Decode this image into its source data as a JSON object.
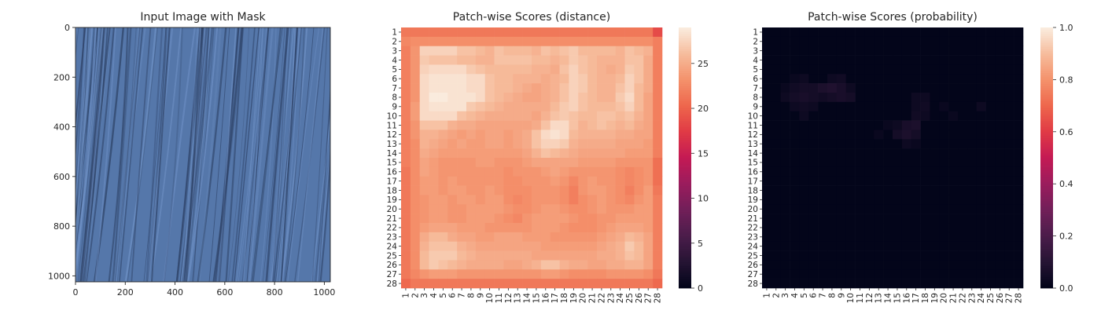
{
  "chart_data": [
    {
      "type": "image",
      "title": "Input Image with Mask",
      "xticks": [
        "0",
        "200",
        "400",
        "600",
        "800",
        "1000"
      ],
      "yticks": [
        "0",
        "200",
        "400",
        "600",
        "800",
        "1000"
      ],
      "xlim": [
        0,
        1024
      ],
      "ylim": [
        0,
        1024
      ],
      "image": {
        "description_color": "#5577aa",
        "dark_streak_color": "#2c4064",
        "light_streak_color": "#6f91c6"
      }
    },
    {
      "type": "heatmap",
      "title": "Patch-wise Scores (distance)",
      "colormap": "rocket",
      "vmin": 0,
      "vmax": 29,
      "colorbar_ticks": [
        "0",
        "5",
        "10",
        "15",
        "20",
        "25"
      ],
      "xticks": [
        "1",
        "2",
        "3",
        "4",
        "5",
        "6",
        "7",
        "8",
        "9",
        "10",
        "11",
        "12",
        "13",
        "14",
        "15",
        "16",
        "17",
        "18",
        "19",
        "20",
        "21",
        "22",
        "23",
        "24",
        "25",
        "26",
        "27",
        "28"
      ],
      "yticks": [
        "1",
        "2",
        "3",
        "4",
        "5",
        "6",
        "7",
        "8",
        "9",
        "10",
        "11",
        "12",
        "13",
        "14",
        "15",
        "16",
        "17",
        "18",
        "19",
        "20",
        "21",
        "22",
        "23",
        "24",
        "25",
        "26",
        "27",
        "28"
      ],
      "rows": [
        [
          21.5,
          21.5,
          21.5,
          21.5,
          21.5,
          21.5,
          21.5,
          21.5,
          21.5,
          21.5,
          21.5,
          21.5,
          21.5,
          21.5,
          21.5,
          21.5,
          21.5,
          21.5,
          21.5,
          21.5,
          21.5,
          21.5,
          21.5,
          21.5,
          21.5,
          21.5,
          21.5,
          18.5
        ],
        [
          22.5,
          23.0,
          23.0,
          23.0,
          23.0,
          23.0,
          23.0,
          23.0,
          23.0,
          23.0,
          23.0,
          23.0,
          23.0,
          23.0,
          23.0,
          23.0,
          23.0,
          23.0,
          23.0,
          23.0,
          23.0,
          23.0,
          23.0,
          23.0,
          23.0,
          23.0,
          23.0,
          22.0
        ],
        [
          22.0,
          23.5,
          27.5,
          27.5,
          27.5,
          27.5,
          26.5,
          26.5,
          26.0,
          25.5,
          26.5,
          26.0,
          26.0,
          26.0,
          25.5,
          26.5,
          26.0,
          26.5,
          27.0,
          26.0,
          26.0,
          26.0,
          26.0,
          25.5,
          26.5,
          26.0,
          25.5,
          22.0
        ],
        [
          22.0,
          23.5,
          27.0,
          26.5,
          26.5,
          26.5,
          26.0,
          26.0,
          25.5,
          25.5,
          26.5,
          26.5,
          26.5,
          26.5,
          26.0,
          26.0,
          25.5,
          26.0,
          27.0,
          26.5,
          26.0,
          25.5,
          25.5,
          25.5,
          26.5,
          26.5,
          25.0,
          22.0
        ],
        [
          22.0,
          23.5,
          27.5,
          28.0,
          28.0,
          28.0,
          28.0,
          27.0,
          26.5,
          26.0,
          26.0,
          26.0,
          26.0,
          26.0,
          25.5,
          25.5,
          25.0,
          26.5,
          27.5,
          26.5,
          26.0,
          25.5,
          25.0,
          25.5,
          27.0,
          26.5,
          25.0,
          22.0
        ],
        [
          22.0,
          23.5,
          28.0,
          28.5,
          28.5,
          28.5,
          28.5,
          28.0,
          28.0,
          26.5,
          26.0,
          26.0,
          25.5,
          25.5,
          25.5,
          25.0,
          25.5,
          26.0,
          27.5,
          27.0,
          26.0,
          25.5,
          25.5,
          26.0,
          27.5,
          26.5,
          25.0,
          22.0
        ],
        [
          22.0,
          23.5,
          28.0,
          28.5,
          28.5,
          28.5,
          28.5,
          28.0,
          28.0,
          26.5,
          26.0,
          26.0,
          25.5,
          25.0,
          24.5,
          25.0,
          25.5,
          26.5,
          27.5,
          27.0,
          26.0,
          25.5,
          25.5,
          26.5,
          27.5,
          26.0,
          25.0,
          22.0
        ],
        [
          22.0,
          23.5,
          28.0,
          29.0,
          29.0,
          28.5,
          28.5,
          28.5,
          28.0,
          26.5,
          26.0,
          25.5,
          25.0,
          24.5,
          24.5,
          25.0,
          25.5,
          26.5,
          27.5,
          26.5,
          26.0,
          25.5,
          25.5,
          27.0,
          28.0,
          26.0,
          24.5,
          22.0
        ],
        [
          22.0,
          24.0,
          28.0,
          28.5,
          28.5,
          28.5,
          28.5,
          27.0,
          26.5,
          26.0,
          25.5,
          25.0,
          25.0,
          25.0,
          25.0,
          25.0,
          26.0,
          27.0,
          27.5,
          26.5,
          26.0,
          26.0,
          26.0,
          26.5,
          27.5,
          26.0,
          24.5,
          22.0
        ],
        [
          22.0,
          24.0,
          28.0,
          28.0,
          28.0,
          28.0,
          26.5,
          26.0,
          25.5,
          25.0,
          25.0,
          25.0,
          25.0,
          25.0,
          24.5,
          25.5,
          26.5,
          27.0,
          26.5,
          26.0,
          26.0,
          26.5,
          26.5,
          26.0,
          26.5,
          25.5,
          24.5,
          22.0
        ],
        [
          22.0,
          23.5,
          26.5,
          26.5,
          26.5,
          25.5,
          25.0,
          25.0,
          24.5,
          24.5,
          24.5,
          24.5,
          24.5,
          24.5,
          25.0,
          26.5,
          28.0,
          28.0,
          26.5,
          25.5,
          26.0,
          26.5,
          26.0,
          25.5,
          26.0,
          25.0,
          24.5,
          22.0
        ],
        [
          22.0,
          23.5,
          25.5,
          25.5,
          25.0,
          24.5,
          24.0,
          24.5,
          24.0,
          24.5,
          24.5,
          24.0,
          24.5,
          25.0,
          26.5,
          28.0,
          28.5,
          28.0,
          26.0,
          25.5,
          25.5,
          25.5,
          25.5,
          25.0,
          25.0,
          24.5,
          24.5,
          22.0
        ],
        [
          22.0,
          23.0,
          25.5,
          25.0,
          24.5,
          24.0,
          24.5,
          24.0,
          24.0,
          24.5,
          24.5,
          24.0,
          24.5,
          25.0,
          26.5,
          27.5,
          27.5,
          27.0,
          25.5,
          25.0,
          25.0,
          25.0,
          25.0,
          24.5,
          24.5,
          24.5,
          24.0,
          22.0
        ],
        [
          22.0,
          23.0,
          25.0,
          24.5,
          24.0,
          24.0,
          24.0,
          24.0,
          24.0,
          24.0,
          24.0,
          24.0,
          24.0,
          24.5,
          25.5,
          26.5,
          26.0,
          25.5,
          25.0,
          24.5,
          24.5,
          24.5,
          24.5,
          24.5,
          24.0,
          24.0,
          24.0,
          22.0
        ],
        [
          22.0,
          23.0,
          24.5,
          24.0,
          23.5,
          23.5,
          23.5,
          23.5,
          24.0,
          24.0,
          23.5,
          23.5,
          23.5,
          24.0,
          24.5,
          24.5,
          24.5,
          24.5,
          24.5,
          24.0,
          24.0,
          24.0,
          24.0,
          23.5,
          23.5,
          23.5,
          23.5,
          21.0
        ],
        [
          21.5,
          23.0,
          24.5,
          24.0,
          23.5,
          23.5,
          23.5,
          23.5,
          23.5,
          23.5,
          23.5,
          23.0,
          23.5,
          23.5,
          23.5,
          24.0,
          24.5,
          24.0,
          23.5,
          23.5,
          23.5,
          23.5,
          23.5,
          23.0,
          22.5,
          23.0,
          23.5,
          21.0
        ],
        [
          21.5,
          23.0,
          24.0,
          24.0,
          23.5,
          24.0,
          23.5,
          23.5,
          23.5,
          23.5,
          23.5,
          23.0,
          23.0,
          23.5,
          23.5,
          23.5,
          24.0,
          23.5,
          22.5,
          23.5,
          24.0,
          23.5,
          23.5,
          23.0,
          22.5,
          23.0,
          23.5,
          21.0
        ],
        [
          21.5,
          23.0,
          24.0,
          24.0,
          23.5,
          24.0,
          24.0,
          23.5,
          23.5,
          24.0,
          23.5,
          23.0,
          23.0,
          23.0,
          23.5,
          23.5,
          23.5,
          23.0,
          22.0,
          23.5,
          24.0,
          24.0,
          23.5,
          23.0,
          22.0,
          23.0,
          24.0,
          21.5
        ],
        [
          21.5,
          23.0,
          23.5,
          24.0,
          24.0,
          23.5,
          24.0,
          24.0,
          23.5,
          24.0,
          24.0,
          23.0,
          22.5,
          23.0,
          23.5,
          23.5,
          23.5,
          23.0,
          22.0,
          23.0,
          23.5,
          24.0,
          23.5,
          23.0,
          22.5,
          23.5,
          24.0,
          22.0
        ],
        [
          21.5,
          23.0,
          23.5,
          24.0,
          24.0,
          23.5,
          23.5,
          24.0,
          24.0,
          24.0,
          24.0,
          23.5,
          23.0,
          23.0,
          23.5,
          24.0,
          24.0,
          23.5,
          23.0,
          23.0,
          23.5,
          24.0,
          23.5,
          23.5,
          23.5,
          24.0,
          24.0,
          22.0
        ],
        [
          21.5,
          23.0,
          23.5,
          24.0,
          24.0,
          23.5,
          23.5,
          24.0,
          24.0,
          24.0,
          23.5,
          23.0,
          22.5,
          23.5,
          24.0,
          24.0,
          24.0,
          24.0,
          23.5,
          23.0,
          23.0,
          23.5,
          23.5,
          24.0,
          24.0,
          24.0,
          24.0,
          22.0
        ],
        [
          21.5,
          23.0,
          24.0,
          24.5,
          24.5,
          24.5,
          24.0,
          24.0,
          24.0,
          23.5,
          23.5,
          23.5,
          23.5,
          23.5,
          24.0,
          24.0,
          24.0,
          23.5,
          23.0,
          23.0,
          23.0,
          23.5,
          24.0,
          24.5,
          24.5,
          24.5,
          24.0,
          22.0
        ],
        [
          21.5,
          23.0,
          25.0,
          26.0,
          26.0,
          25.0,
          24.5,
          24.5,
          24.0,
          24.0,
          24.5,
          24.5,
          24.5,
          24.0,
          24.0,
          24.0,
          23.5,
          23.5,
          23.5,
          23.5,
          23.5,
          24.0,
          24.5,
          25.0,
          26.0,
          25.5,
          24.5,
          22.0
        ],
        [
          21.5,
          23.0,
          25.5,
          26.5,
          26.5,
          26.5,
          25.5,
          25.0,
          24.5,
          24.5,
          24.5,
          24.5,
          24.5,
          24.5,
          24.5,
          24.0,
          24.0,
          24.0,
          24.0,
          24.0,
          24.0,
          24.5,
          25.0,
          25.5,
          27.0,
          26.0,
          24.5,
          22.0
        ],
        [
          21.5,
          23.0,
          26.0,
          27.0,
          27.0,
          27.0,
          26.0,
          25.5,
          25.0,
          25.0,
          25.0,
          25.0,
          25.0,
          25.0,
          24.5,
          24.5,
          24.5,
          24.5,
          24.5,
          24.5,
          24.5,
          25.0,
          25.0,
          25.5,
          26.5,
          26.0,
          24.5,
          22.0
        ],
        [
          21.5,
          23.0,
          26.0,
          27.0,
          26.5,
          26.0,
          25.5,
          25.0,
          25.0,
          25.0,
          25.0,
          24.5,
          24.5,
          25.0,
          25.5,
          26.5,
          26.5,
          25.5,
          25.0,
          25.0,
          24.5,
          24.5,
          25.0,
          25.0,
          25.5,
          25.5,
          24.5,
          22.0
        ],
        [
          21.5,
          22.5,
          23.5,
          24.0,
          24.0,
          24.0,
          23.5,
          23.5,
          23.5,
          23.5,
          23.5,
          23.5,
          23.5,
          23.5,
          23.5,
          24.0,
          24.0,
          23.5,
          23.0,
          23.0,
          23.0,
          23.0,
          23.5,
          23.5,
          23.5,
          23.5,
          23.0,
          21.5
        ],
        [
          20.5,
          21.5,
          21.5,
          21.5,
          21.5,
          21.5,
          21.5,
          21.5,
          21.5,
          21.5,
          21.5,
          21.5,
          21.5,
          21.5,
          21.5,
          21.5,
          21.5,
          21.5,
          21.5,
          21.5,
          21.5,
          21.5,
          21.5,
          21.5,
          21.5,
          21.5,
          21.5,
          20.5
        ]
      ]
    },
    {
      "type": "heatmap",
      "title": "Patch-wise Scores (probability)",
      "colormap": "rocket",
      "vmin": 0,
      "vmax": 1,
      "colorbar_ticks": [
        "0.0",
        "0.2",
        "0.4",
        "0.6",
        "0.8",
        "1.0"
      ],
      "xticks": [
        "1",
        "2",
        "3",
        "4",
        "5",
        "6",
        "7",
        "8",
        "9",
        "10",
        "11",
        "12",
        "13",
        "14",
        "15",
        "16",
        "17",
        "18",
        "19",
        "20",
        "21",
        "22",
        "23",
        "24",
        "25",
        "26",
        "27",
        "28"
      ],
      "yticks": [
        "1",
        "2",
        "3",
        "4",
        "5",
        "6",
        "7",
        "8",
        "9",
        "10",
        "11",
        "12",
        "13",
        "14",
        "15",
        "16",
        "17",
        "18",
        "19",
        "20",
        "21",
        "22",
        "23",
        "24",
        "25",
        "26",
        "27",
        "28"
      ],
      "sparse_values": [
        {
          "row": 6,
          "col": 4,
          "v": 0.02
        },
        {
          "row": 6,
          "col": 5,
          "v": 0.03
        },
        {
          "row": 6,
          "col": 8,
          "v": 0.03
        },
        {
          "row": 6,
          "col": 9,
          "v": 0.04
        },
        {
          "row": 7,
          "col": 3,
          "v": 0.02
        },
        {
          "row": 7,
          "col": 4,
          "v": 0.04
        },
        {
          "row": 7,
          "col": 5,
          "v": 0.05
        },
        {
          "row": 7,
          "col": 6,
          "v": 0.05
        },
        {
          "row": 7,
          "col": 7,
          "v": 0.07
        },
        {
          "row": 7,
          "col": 8,
          "v": 0.08
        },
        {
          "row": 7,
          "col": 9,
          "v": 0.06
        },
        {
          "row": 7,
          "col": 10,
          "v": 0.03
        },
        {
          "row": 8,
          "col": 3,
          "v": 0.03
        },
        {
          "row": 8,
          "col": 4,
          "v": 0.05
        },
        {
          "row": 8,
          "col": 5,
          "v": 0.06
        },
        {
          "row": 8,
          "col": 6,
          "v": 0.05
        },
        {
          "row": 8,
          "col": 7,
          "v": 0.04
        },
        {
          "row": 8,
          "col": 8,
          "v": 0.05
        },
        {
          "row": 8,
          "col": 9,
          "v": 0.06
        },
        {
          "row": 8,
          "col": 10,
          "v": 0.05
        },
        {
          "row": 8,
          "col": 17,
          "v": 0.03
        },
        {
          "row": 8,
          "col": 18,
          "v": 0.03
        },
        {
          "row": 9,
          "col": 4,
          "v": 0.03
        },
        {
          "row": 9,
          "col": 5,
          "v": 0.04
        },
        {
          "row": 9,
          "col": 6,
          "v": 0.03
        },
        {
          "row": 9,
          "col": 17,
          "v": 0.03
        },
        {
          "row": 9,
          "col": 18,
          "v": 0.04
        },
        {
          "row": 9,
          "col": 20,
          "v": 0.02
        },
        {
          "row": 9,
          "col": 24,
          "v": 0.03
        },
        {
          "row": 10,
          "col": 5,
          "v": 0.03
        },
        {
          "row": 10,
          "col": 17,
          "v": 0.04
        },
        {
          "row": 10,
          "col": 18,
          "v": 0.03
        },
        {
          "row": 10,
          "col": 21,
          "v": 0.02
        },
        {
          "row": 11,
          "col": 14,
          "v": 0.02
        },
        {
          "row": 11,
          "col": 15,
          "v": 0.03
        },
        {
          "row": 11,
          "col": 16,
          "v": 0.06
        },
        {
          "row": 11,
          "col": 17,
          "v": 0.07
        },
        {
          "row": 12,
          "col": 13,
          "v": 0.02
        },
        {
          "row": 12,
          "col": 15,
          "v": 0.05
        },
        {
          "row": 12,
          "col": 16,
          "v": 0.07
        },
        {
          "row": 12,
          "col": 17,
          "v": 0.05
        },
        {
          "row": 13,
          "col": 16,
          "v": 0.03
        },
        {
          "row": 13,
          "col": 17,
          "v": 0.02
        }
      ]
    }
  ]
}
